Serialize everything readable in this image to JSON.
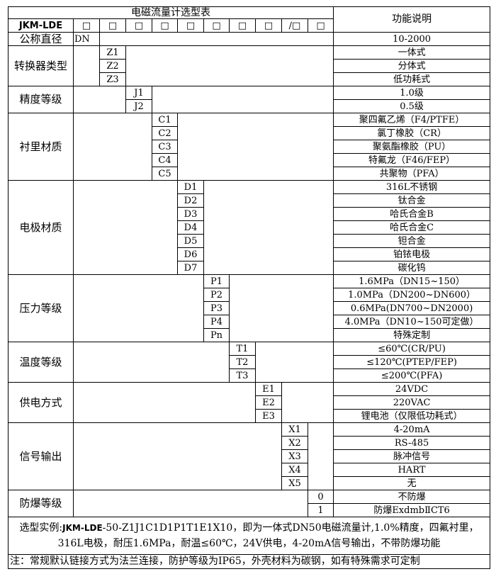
{
  "title": "电磁流量计选型表",
  "function_header": "功能说明",
  "model_prefix": "JKM-LDE",
  "header_boxes": [
    "□",
    "□",
    "□",
    "□",
    "□",
    "□",
    "□",
    "□",
    "/□",
    "□"
  ],
  "groups": [
    {
      "label": "公称直径",
      "codes": [
        "DN"
      ],
      "descs": [
        "10-2000"
      ]
    },
    {
      "label": "转换器类型",
      "codes": [
        "Z1",
        "Z2",
        "Z3"
      ],
      "descs": [
        "一体式",
        "分体式",
        "低功耗式"
      ]
    },
    {
      "label": "精度等级",
      "codes": [
        "J1",
        "J2"
      ],
      "descs": [
        "1.0级",
        "0.5级"
      ]
    },
    {
      "label": "衬里材质",
      "codes": [
        "C1",
        "C2",
        "C3",
        "C4",
        "C5"
      ],
      "descs": [
        "聚四氟乙烯（F4/PTFE）",
        "氯丁橡胶（CR）",
        "聚氨酯橡胶（PU）",
        "特氟龙（F46/FEP）",
        "共聚物（PFA）"
      ]
    },
    {
      "label": "电极材质",
      "codes": [
        "D1",
        "D2",
        "D3",
        "D4",
        "D5",
        "D6",
        "D7"
      ],
      "descs": [
        "316L不锈钢",
        "钛合金",
        "哈氏合金B",
        "哈氏合金C",
        "钽合金",
        "铂铱电极",
        "碳化钨"
      ]
    },
    {
      "label": "压力等级",
      "codes": [
        "P1",
        "P2",
        "P3",
        "P4",
        "Pn"
      ],
      "descs": [
        "1.6MPa（DN15~150）",
        "1.0MPa（DN200~DN600）",
        "0.6MPa(DN700~DN2000)",
        "4.0MPa（DN10~150可定做）",
        "特殊定制"
      ]
    },
    {
      "label": "温度等级",
      "codes": [
        "T1",
        "T2",
        "T3"
      ],
      "descs": [
        "≤60℃(CR/PU)",
        "≤120℃(PTEP/FEP)",
        "≤200℃(PFA)"
      ]
    },
    {
      "label": "供电方式",
      "codes": [
        "E1",
        "E2",
        "E3"
      ],
      "descs": [
        "24VDC",
        "220VAC",
        "锂电池（仅限低功耗式）"
      ]
    },
    {
      "label": "信号输出",
      "codes": [
        "X1",
        "X2",
        "X3",
        "X4",
        "X5"
      ],
      "descs": [
        "4-20mA",
        "RS-485",
        "脉冲信号",
        "HART",
        "无"
      ]
    },
    {
      "label": "防爆等级",
      "codes": [
        "0",
        "1"
      ],
      "descs": [
        "不防爆",
        "防爆ExdmbⅡCT6"
      ]
    }
  ],
  "example": {
    "prefix": "选型实例:",
    "brand": "JKM-LDE",
    "line1": "-50-Z1J1C1D1P1T1E1X10，即为一体式DN50电磁流量计,1.0%精度，四氟衬里，",
    "line2": "316L电极，耐压1.6MPa，耐温≤60℃，24V供电，4-20mA信号输出，不带防爆功能"
  },
  "note": "注：常规默认链接方式为法兰连接，防护等级为IP65，外壳材料为碳钢，如有特殊需求可定制"
}
